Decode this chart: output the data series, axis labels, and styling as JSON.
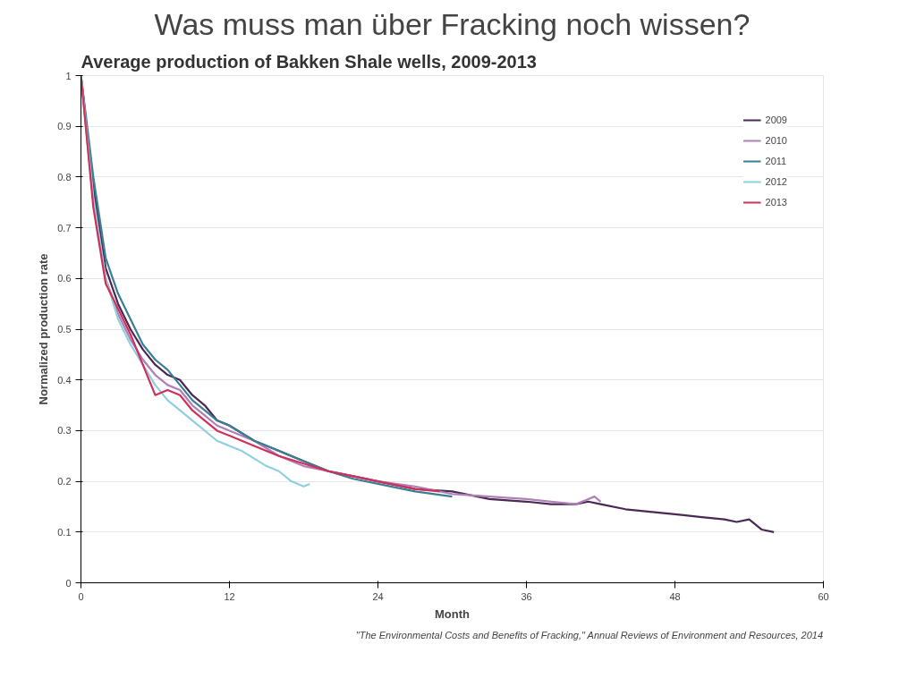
{
  "chart_data": {
    "type": "line",
    "title": "Was muss man über Fracking noch wissen?",
    "subtitle": "Average production of Bakken Shale wells, 2009-2013",
    "xlabel": "Month",
    "ylabel": "Normalized production rate",
    "annotations": [
      "\"The Environmental Costs and Benefits of Fracking,\" Annual Reviews of Environment and Resources, 2014"
    ],
    "xlim": [
      0,
      60
    ],
    "xticks": [
      0,
      12,
      24,
      36,
      48,
      60
    ],
    "ylim": [
      0,
      1
    ],
    "yticks": [
      0,
      0.1,
      0.2,
      0.3,
      0.4,
      0.5,
      0.6,
      0.7,
      0.8,
      0.9,
      1
    ],
    "grid": "y",
    "legend": "top right",
    "line_style": "solid",
    "series": [
      {
        "name": "2009",
        "color": "#4a2a55",
        "x": [
          0,
          1,
          2,
          3,
          4,
          5,
          6,
          7,
          8,
          9,
          10,
          11,
          12,
          14,
          16,
          18,
          20,
          22,
          24,
          27,
          30,
          33,
          36,
          38,
          40,
          41,
          42,
          44,
          46,
          48,
          50,
          52,
          53,
          54,
          55,
          56
        ],
        "values": [
          1,
          0.78,
          0.62,
          0.55,
          0.5,
          0.46,
          0.43,
          0.41,
          0.4,
          0.37,
          0.35,
          0.32,
          0.31,
          0.28,
          0.26,
          0.24,
          0.22,
          0.21,
          0.2,
          0.185,
          0.18,
          0.165,
          0.16,
          0.155,
          0.155,
          0.16,
          0.155,
          0.145,
          0.14,
          0.135,
          0.13,
          0.125,
          0.12,
          0.125,
          0.105,
          0.1
        ]
      },
      {
        "name": "2010",
        "color": "#b07fb8",
        "x": [
          0,
          1,
          2,
          3,
          4,
          5,
          6,
          7,
          8,
          9,
          10,
          11,
          12,
          14,
          16,
          18,
          20,
          22,
          24,
          27,
          30,
          33,
          36,
          38,
          40,
          41,
          41.5,
          42
        ],
        "values": [
          1,
          0.75,
          0.6,
          0.53,
          0.48,
          0.44,
          0.41,
          0.39,
          0.38,
          0.35,
          0.33,
          0.31,
          0.3,
          0.28,
          0.25,
          0.23,
          0.22,
          0.21,
          0.2,
          0.19,
          0.175,
          0.17,
          0.165,
          0.16,
          0.155,
          0.165,
          0.17,
          0.16
        ]
      },
      {
        "name": "2011",
        "color": "#3b7f95",
        "x": [
          0,
          1,
          2,
          3,
          4,
          5,
          6,
          7,
          8,
          9,
          10,
          11,
          12,
          14,
          16,
          18,
          20,
          22,
          24,
          27,
          30
        ],
        "values": [
          1,
          0.8,
          0.64,
          0.57,
          0.52,
          0.47,
          0.44,
          0.42,
          0.39,
          0.36,
          0.34,
          0.32,
          0.31,
          0.28,
          0.26,
          0.24,
          0.22,
          0.205,
          0.195,
          0.18,
          0.17
        ]
      },
      {
        "name": "2012",
        "color": "#8fd0e0",
        "x": [
          0,
          1,
          2,
          3,
          4,
          5,
          6,
          7,
          8,
          9,
          10,
          11,
          12,
          13,
          14,
          15,
          16,
          17,
          18,
          18.5
        ],
        "values": [
          1,
          0.76,
          0.6,
          0.52,
          0.47,
          0.43,
          0.39,
          0.36,
          0.34,
          0.32,
          0.3,
          0.28,
          0.27,
          0.26,
          0.245,
          0.23,
          0.22,
          0.2,
          0.19,
          0.195
        ]
      },
      {
        "name": "2013",
        "color": "#d0305a",
        "x": [
          0,
          1,
          2,
          3,
          4,
          5,
          6,
          7,
          8,
          9,
          10,
          11,
          12,
          14,
          16,
          18,
          20,
          22,
          24,
          27,
          29
        ],
        "values": [
          1,
          0.74,
          0.59,
          0.54,
          0.49,
          0.43,
          0.37,
          0.38,
          0.37,
          0.34,
          0.32,
          0.3,
          0.29,
          0.27,
          0.25,
          0.235,
          0.22,
          0.21,
          0.2,
          0.185,
          0.18
        ]
      }
    ]
  }
}
